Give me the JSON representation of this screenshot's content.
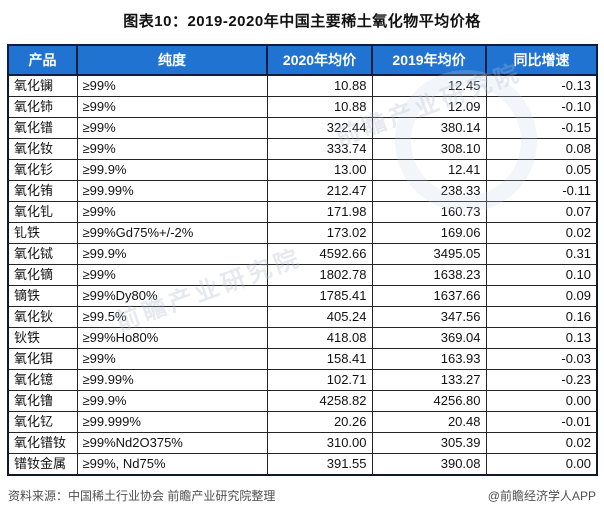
{
  "title": "图表10：2019-2020年中国主要稀土氧化物平均价格",
  "chart_data": {
    "type": "table",
    "columns": [
      "产品",
      "纯度",
      "2020年均价",
      "2019年均价",
      "同比增速"
    ],
    "rows": [
      [
        "氧化镧",
        "≥99%",
        "10.88",
        "12.45",
        "-0.13"
      ],
      [
        "氧化铈",
        "≥99%",
        "10.88",
        "12.09",
        "-0.10"
      ],
      [
        "氧化镨",
        "≥99%",
        "322.44",
        "380.14",
        "-0.15"
      ],
      [
        "氧化钕",
        "≥99%",
        "333.74",
        "308.10",
        "0.08"
      ],
      [
        "氧化钐",
        "≥99.9%",
        "13.00",
        "12.41",
        "0.05"
      ],
      [
        "氧化铕",
        "≥99.99%",
        "212.47",
        "238.33",
        "-0.11"
      ],
      [
        "氧化钆",
        "≥99%",
        "171.98",
        "160.73",
        "0.07"
      ],
      [
        "钆铁",
        "≥99%Gd75%+/-2%",
        "173.02",
        "169.06",
        "0.02"
      ],
      [
        "氧化铽",
        "≥99.9%",
        "4592.66",
        "3495.05",
        "0.31"
      ],
      [
        "氧化镝",
        "≥99%",
        "1802.78",
        "1638.23",
        "0.10"
      ],
      [
        "镝铁",
        "≥99%Dy80%",
        "1785.41",
        "1637.66",
        "0.09"
      ],
      [
        "氧化钬",
        "≥99.5%",
        "405.24",
        "347.56",
        "0.16"
      ],
      [
        "钬铁",
        "≥99%Ho80%",
        "418.08",
        "369.04",
        "0.13"
      ],
      [
        "氧化铒",
        "≥99%",
        "158.41",
        "163.93",
        "-0.03"
      ],
      [
        "氧化镱",
        "≥99.99%",
        "102.71",
        "133.27",
        "-0.23"
      ],
      [
        "氧化镥",
        "≥99.9%",
        "4258.82",
        "4256.80",
        "0.00"
      ],
      [
        "氧化钇",
        "≥99.999%",
        "20.26",
        "20.48",
        "-0.01"
      ],
      [
        "氧化镨钕",
        "≥99%Nd2O375%",
        "310.00",
        "305.39",
        "0.02"
      ],
      [
        "镨钕金属",
        "≥99%, Nd75%",
        "391.55",
        "390.08",
        "0.00"
      ]
    ]
  },
  "footer": {
    "source": "资料来源：中国稀土行业协会 前瞻产业研究院整理",
    "credit": "@前瞻经济学人APP"
  },
  "watermark": {
    "text": "前瞻产业研究院"
  },
  "colors": {
    "header_bg": "#2173d2",
    "header_text": "#ffffff",
    "border": "#262626",
    "footer_text": "#4f4f4f"
  }
}
